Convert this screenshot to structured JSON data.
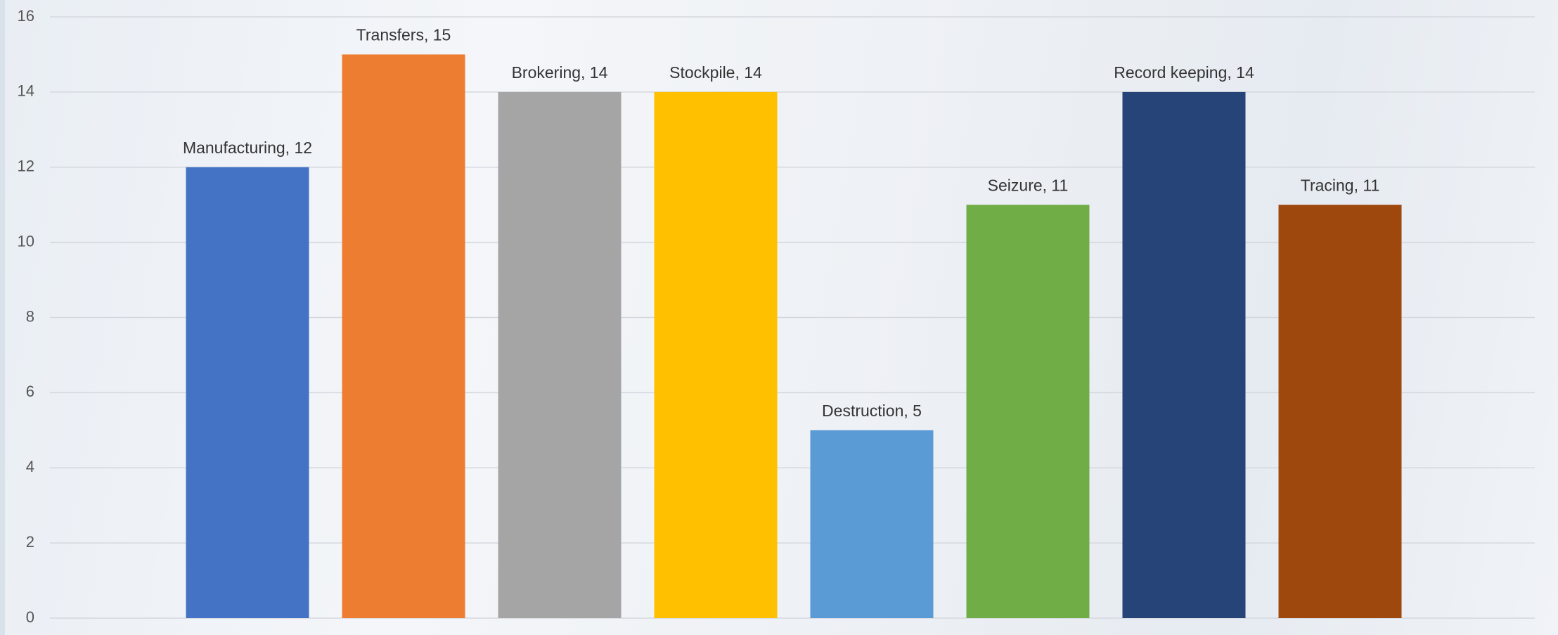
{
  "chart_data": {
    "type": "bar",
    "values": [
      12,
      15,
      14,
      14,
      5,
      11,
      14,
      11
    ],
    "value_labels": [
      "Manufacturing, 12",
      "Transfers, 15",
      "Brokering, 14",
      "Stockpile, 14",
      "Destruction, 5",
      "Seizure, 11",
      "Record keeping, 14",
      "Tracing, 11"
    ],
    "colors": [
      "#4472c4",
      "#ed7d31",
      "#a5a5a5",
      "#ffc000",
      "#5b9bd5",
      "#70ad47",
      "#264478",
      "#9e480e"
    ],
    "ylim": [
      0,
      16
    ],
    "yticks": [
      0,
      2,
      4,
      6,
      8,
      10,
      12,
      14,
      16
    ],
    "grid": true
  }
}
